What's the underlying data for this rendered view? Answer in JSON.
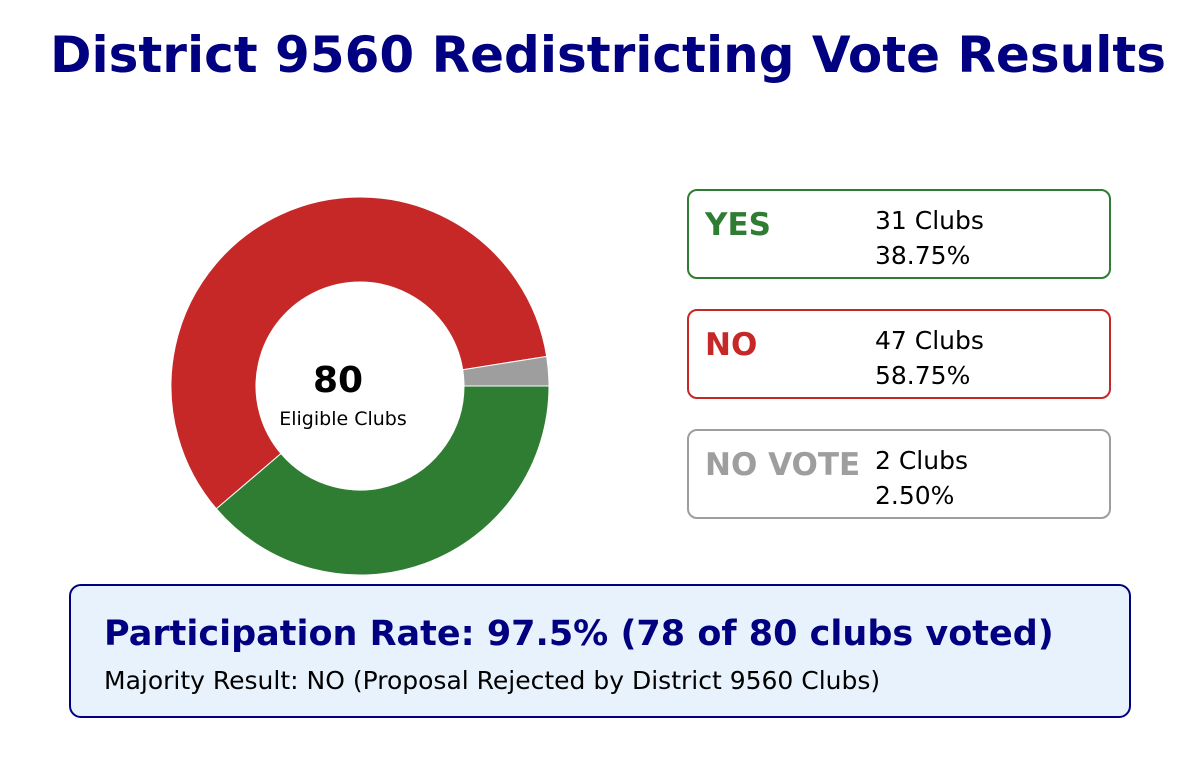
{
  "title": "District 9560 Redistricting Vote Results",
  "chart_data": {
    "type": "pie",
    "style": "donut",
    "center_value": "80",
    "center_label": "Eligible Clubs",
    "total": 80,
    "categories": [
      "YES",
      "NO",
      "NO VOTE"
    ],
    "values": [
      31,
      47,
      2
    ],
    "colors": [
      "#2e7d32",
      "#c62828",
      "#9e9e9e"
    ]
  },
  "cards": [
    {
      "label": "YES",
      "count": "31 Clubs",
      "percent": "38.75%",
      "color": "#2e7d32"
    },
    {
      "label": "NO",
      "count": "47 Clubs",
      "percent": "58.75%",
      "color": "#c62828"
    },
    {
      "label": "NO VOTE",
      "count": "2 Clubs",
      "percent": "2.50%",
      "color": "#9e9e9e"
    }
  ],
  "summary": {
    "title": "Participation Rate: 97.5% (78 of 80 clubs voted)",
    "subtitle": "Majority Result: NO (Proposal Rejected by District 9560 Clubs)",
    "accent": "#000080",
    "background": "#e8f2fc"
  }
}
